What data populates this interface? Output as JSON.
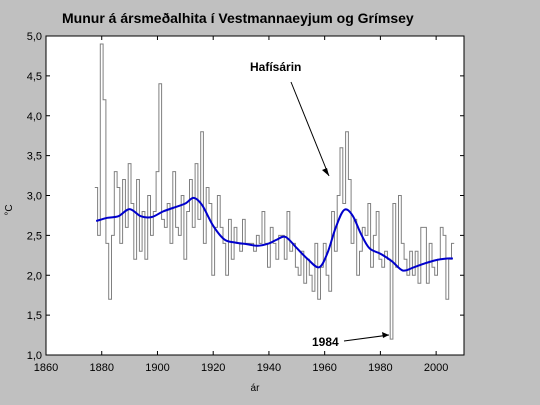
{
  "chart_data": {
    "type": "line",
    "title": "Munur á ársmeðalhita í Vestmannaeyjum og Grímsey",
    "xlabel": "ár",
    "ylabel": "°C",
    "xlim": [
      1860,
      2010
    ],
    "ylim": [
      1.0,
      5.0
    ],
    "xticks": [
      "1860",
      "1880",
      "1900",
      "1920",
      "1940",
      "1960",
      "1980",
      "2000"
    ],
    "yticks": [
      "1,0",
      "1,5",
      "2,0",
      "2,5",
      "3,0",
      "3,5",
      "4,0",
      "4,5",
      "5,0"
    ],
    "grid": false,
    "colors": {
      "annual": "#808080",
      "smooth": "#0000cc",
      "background": "#c0c0c0",
      "plot": "#ffffff"
    },
    "series": [
      {
        "style": "step",
        "x": [
          1878,
          1879,
          1880,
          1881,
          1882,
          1883,
          1884,
          1885,
          1886,
          1887,
          1888,
          1889,
          1890,
          1891,
          1892,
          1893,
          1894,
          1895,
          1896,
          1897,
          1898,
          1899,
          1900,
          1901,
          1902,
          1903,
          1904,
          1905,
          1906,
          1907,
          1908,
          1909,
          1910,
          1911,
          1912,
          1913,
          1914,
          1915,
          1916,
          1917,
          1918,
          1919,
          1920,
          1921,
          1922,
          1923,
          1924,
          1925,
          1926,
          1927,
          1928,
          1929,
          1930,
          1931,
          1932,
          1933,
          1934,
          1935,
          1936,
          1937,
          1938,
          1939,
          1940,
          1941,
          1942,
          1943,
          1944,
          1945,
          1946,
          1947,
          1948,
          1949,
          1950,
          1951,
          1952,
          1953,
          1954,
          1955,
          1956,
          1957,
          1958,
          1959,
          1960,
          1961,
          1962,
          1963,
          1964,
          1965,
          1966,
          1967,
          1968,
          1969,
          1970,
          1971,
          1972,
          1973,
          1974,
          1975,
          1976,
          1977,
          1978,
          1979,
          1980,
          1981,
          1982,
          1983,
          1984,
          1985,
          1986,
          1987,
          1988,
          1989,
          1990,
          1991,
          1992,
          1993,
          1994,
          1995,
          1996,
          1997,
          1998,
          1999,
          2000,
          2001,
          2002,
          2003,
          2004,
          2005,
          2006
        ],
        "values": [
          3.1,
          2.5,
          4.9,
          4.2,
          2.4,
          1.7,
          2.5,
          3.3,
          3.1,
          2.4,
          3.2,
          2.6,
          3.4,
          2.9,
          2.2,
          3.2,
          2.3,
          2.8,
          2.2,
          3.0,
          2.5,
          2.8,
          3.3,
          4.4,
          2.7,
          2.6,
          2.9,
          2.4,
          3.3,
          2.6,
          2.5,
          3.0,
          2.2,
          2.8,
          3.2,
          2.6,
          3.4,
          2.7,
          3.8,
          2.4,
          3.1,
          2.9,
          2.0,
          2.6,
          3.0,
          2.6,
          2.4,
          2.0,
          2.7,
          2.2,
          2.6,
          2.4,
          2.3,
          2.7,
          2.4,
          2.4,
          2.4,
          2.3,
          2.5,
          2.4,
          2.8,
          2.4,
          2.1,
          2.6,
          2.4,
          2.2,
          2.5,
          2.5,
          2.2,
          2.8,
          2.3,
          2.4,
          2.1,
          2.0,
          2.3,
          1.9,
          2.2,
          2.0,
          1.8,
          2.4,
          1.7,
          2.1,
          2.4,
          2.0,
          1.8,
          2.8,
          2.3,
          3.0,
          3.6,
          2.9,
          3.8,
          3.2,
          2.4,
          2.7,
          2.0,
          2.3,
          2.6,
          2.5,
          2.9,
          2.1,
          2.5,
          2.8,
          2.2,
          2.1,
          2.3,
          2.2,
          1.2,
          2.9,
          2.1,
          3.0,
          2.4,
          2.2,
          2.0,
          2.3,
          2.0,
          2.3,
          1.9,
          2.6,
          2.6,
          1.9,
          2.4,
          2.1,
          2.0,
          2.2,
          2.6,
          2.5,
          1.7,
          2.2,
          2.4
        ]
      },
      {
        "style": "smooth",
        "x": [
          1878,
          1882,
          1886,
          1890,
          1894,
          1898,
          1902,
          1906,
          1910,
          1913,
          1916,
          1920,
          1924,
          1928,
          1932,
          1936,
          1940,
          1943,
          1946,
          1950,
          1954,
          1958,
          1961,
          1964,
          1967,
          1970,
          1973,
          1976,
          1980,
          1984,
          1988,
          1992,
          1996,
          2000,
          2004,
          2006
        ],
        "values": [
          2.68,
          2.72,
          2.74,
          2.83,
          2.74,
          2.73,
          2.8,
          2.85,
          2.9,
          2.97,
          2.88,
          2.62,
          2.45,
          2.41,
          2.39,
          2.37,
          2.4,
          2.45,
          2.48,
          2.34,
          2.2,
          2.1,
          2.28,
          2.6,
          2.82,
          2.75,
          2.52,
          2.34,
          2.27,
          2.18,
          2.06,
          2.1,
          2.15,
          2.19,
          2.21,
          2.21
        ]
      }
    ],
    "annotations": [
      {
        "text": "Hafísárin",
        "x": 1962,
        "y": 3.2
      },
      {
        "text": "1984",
        "x": 1984,
        "y": 1.22
      }
    ]
  }
}
